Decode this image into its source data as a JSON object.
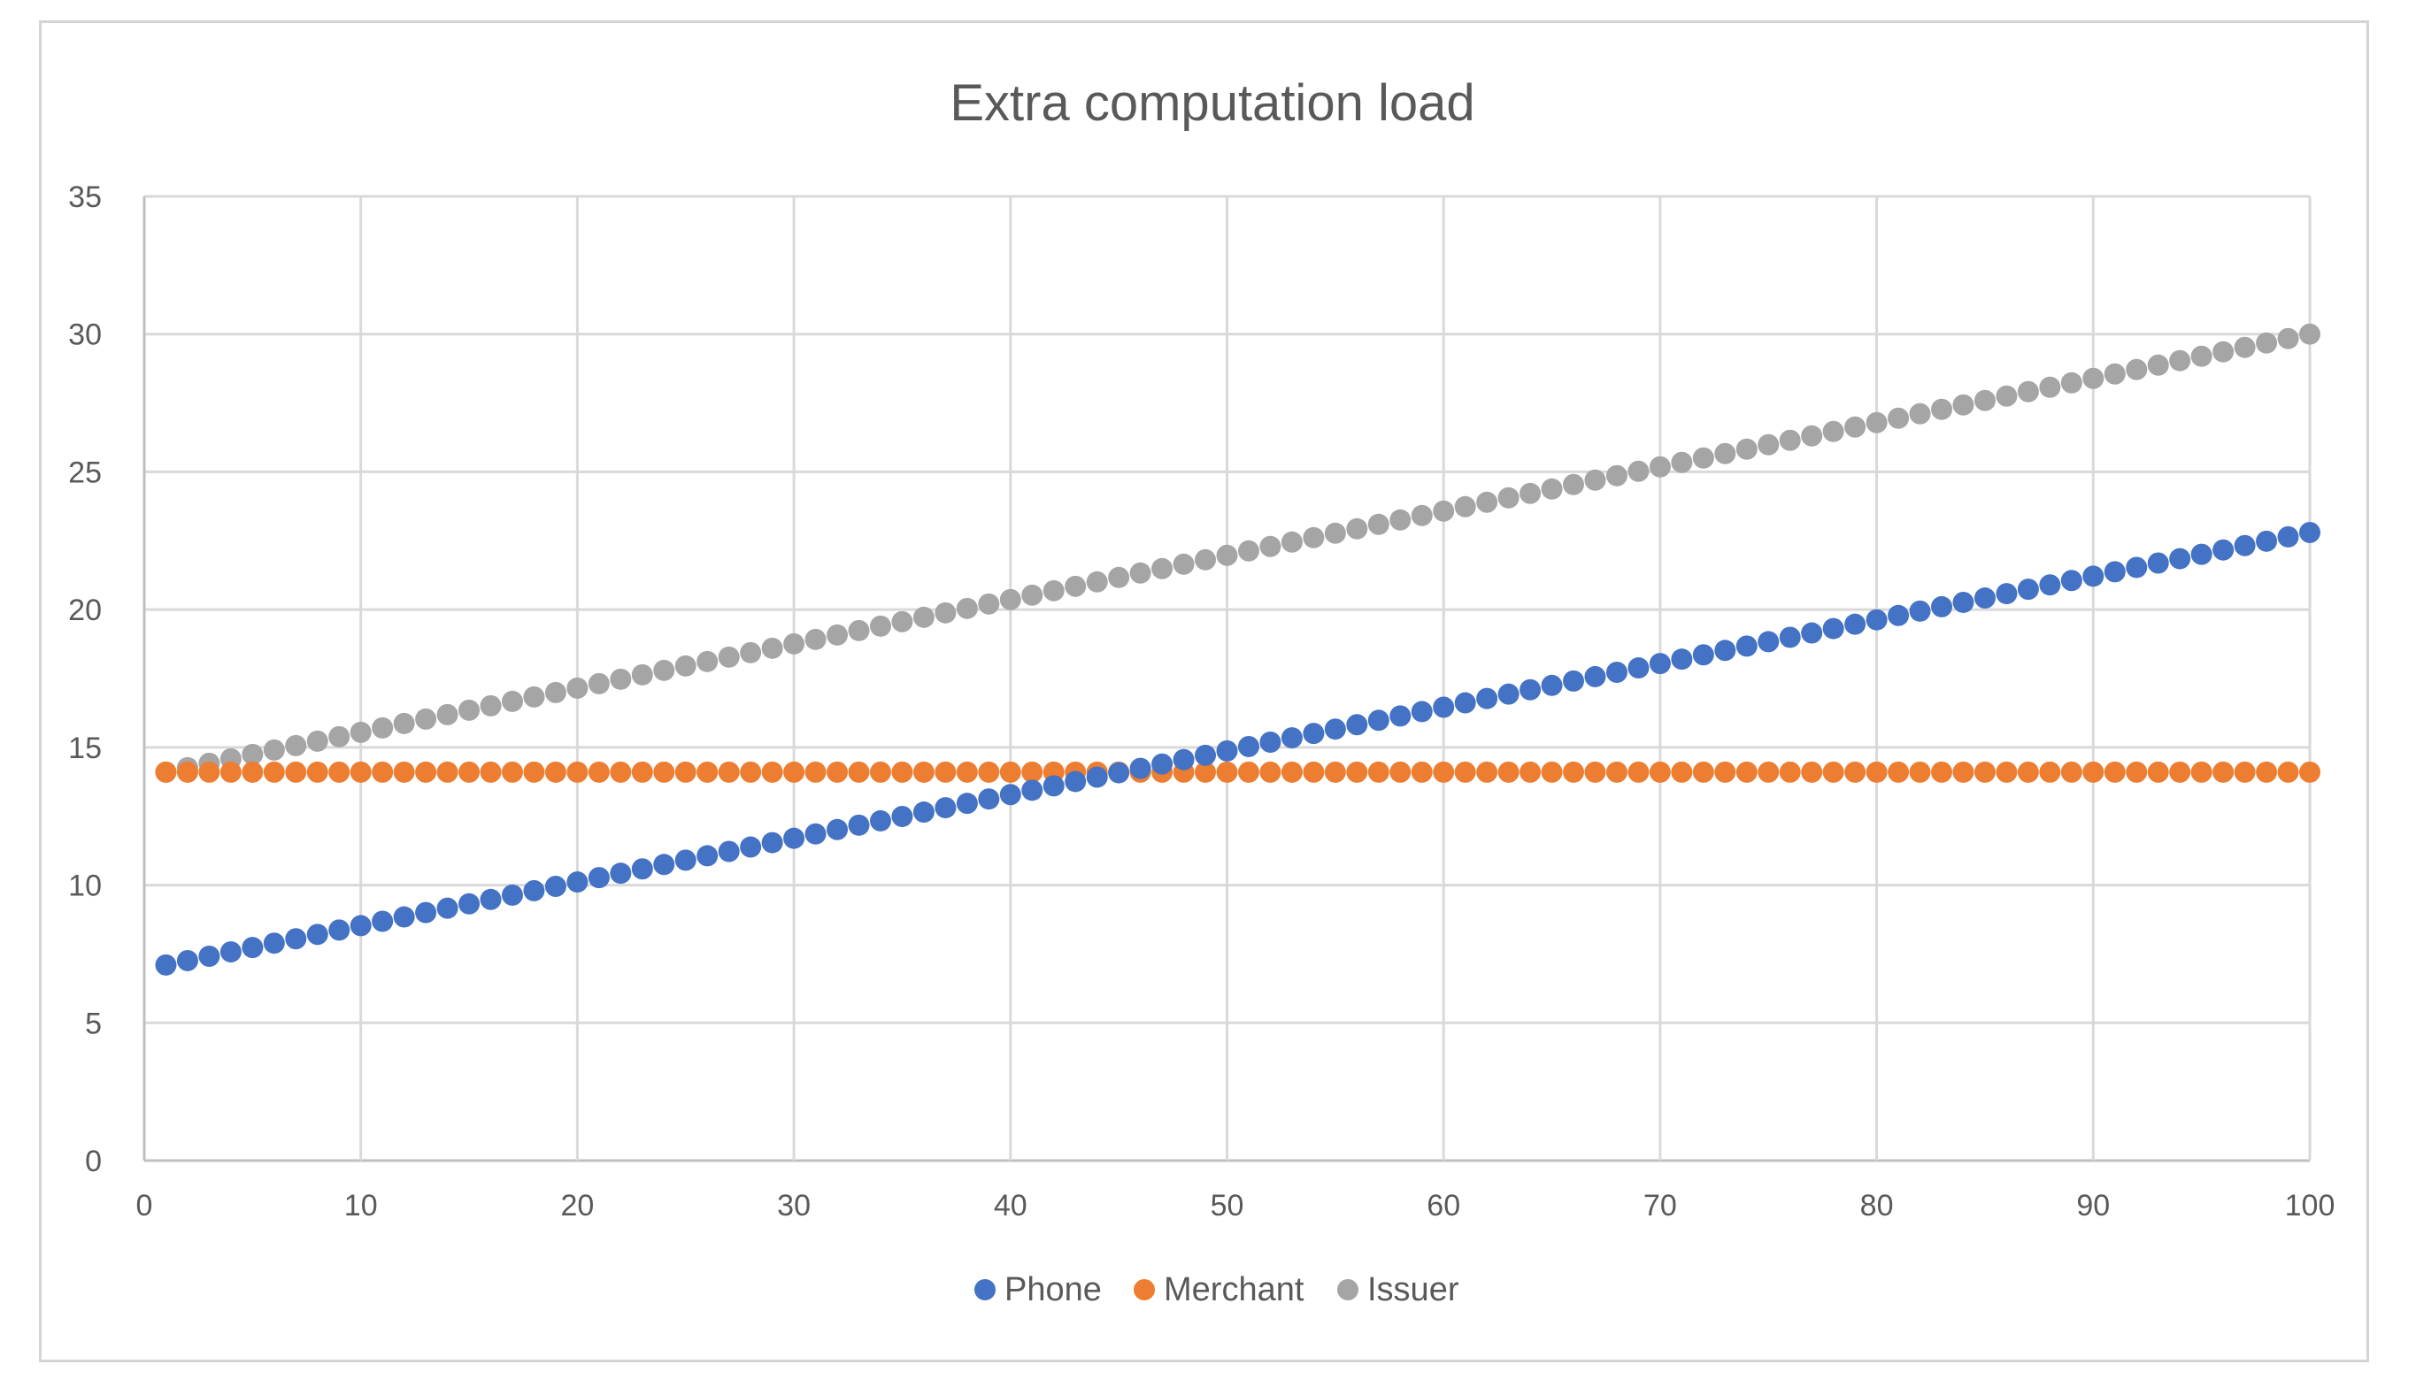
{
  "chart_data": {
    "type": "scatter",
    "title": "Extra computation load",
    "xlabel": "",
    "ylabel": "",
    "xlim": [
      0,
      100
    ],
    "ylim": [
      0,
      35
    ],
    "x_ticks": [
      "0",
      "10",
      "20",
      "30",
      "40",
      "50",
      "60",
      "70",
      "80",
      "90",
      "100"
    ],
    "y_ticks": [
      "0",
      "5",
      "10",
      "15",
      "20",
      "25",
      "30",
      "35"
    ],
    "grid": true,
    "legend_position": "bottom",
    "x_start": 1,
    "x_end": 100,
    "x_step": 1,
    "series": [
      {
        "name": "Phone",
        "color": "#4472c4",
        "start_value": 7.1,
        "end_value": 22.8,
        "trend": "linear"
      },
      {
        "name": "Merchant",
        "color": "#ed7d31",
        "start_value": 14.1,
        "end_value": 14.1,
        "trend": "constant"
      },
      {
        "name": "Issuer",
        "color": "#a5a5a5",
        "start_value": 14.1,
        "end_value": 30.0,
        "trend": "linear"
      }
    ]
  }
}
